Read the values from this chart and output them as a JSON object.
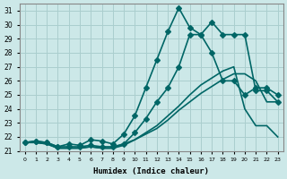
{
  "xlabel": "Humidex (Indice chaleur)",
  "ylabel": "",
  "bg_color": "#cce8e8",
  "grid_color": "#aacece",
  "line_color": "#006666",
  "xlim": [
    -0.5,
    23.5
  ],
  "ylim": [
    21.0,
    31.5
  ],
  "yticks": [
    21,
    22,
    23,
    24,
    25,
    26,
    27,
    28,
    29,
    30,
    31
  ],
  "xticks": [
    0,
    1,
    2,
    3,
    4,
    5,
    6,
    7,
    8,
    9,
    10,
    11,
    12,
    13,
    14,
    15,
    16,
    17,
    18,
    19,
    20,
    21,
    22,
    23
  ],
  "series": [
    {
      "x": [
        0,
        1,
        2,
        3,
        4,
        5,
        6,
        7,
        8,
        9,
        10,
        11,
        12,
        13,
        14,
        15,
        16,
        17,
        18,
        19,
        20,
        21,
        22,
        23
      ],
      "y": [
        21.6,
        21.7,
        21.6,
        21.3,
        21.3,
        21.3,
        21.4,
        21.3,
        21.3,
        21.5,
        22.3,
        23.3,
        24.5,
        25.5,
        27.0,
        29.3,
        29.3,
        30.2,
        29.3,
        29.3,
        29.3,
        25.3,
        25.3,
        24.5
      ],
      "marker": "D",
      "markersize": 3,
      "linewidth": 1.2
    },
    {
      "x": [
        0,
        1,
        2,
        3,
        4,
        5,
        6,
        7,
        8,
        9,
        10,
        11,
        12,
        13,
        14,
        15,
        16,
        17,
        18,
        19,
        20,
        21,
        22,
        23
      ],
      "y": [
        21.6,
        21.7,
        21.6,
        21.3,
        21.5,
        21.4,
        21.8,
        21.7,
        21.5,
        22.2,
        23.5,
        25.5,
        27.5,
        29.5,
        31.2,
        29.8,
        29.3,
        28.0,
        26.0,
        26.0,
        25.0,
        25.5,
        25.5,
        25.0
      ],
      "marker": "D",
      "markersize": 3,
      "linewidth": 1.2
    },
    {
      "x": [
        0,
        1,
        2,
        3,
        4,
        5,
        6,
        7,
        8,
        9,
        10,
        11,
        12,
        13,
        14,
        15,
        16,
        17,
        18,
        19,
        20,
        21,
        22,
        23
      ],
      "y": [
        21.6,
        21.6,
        21.5,
        21.2,
        21.2,
        21.2,
        21.3,
        21.2,
        21.2,
        21.5,
        21.8,
        22.3,
        22.8,
        23.5,
        24.2,
        25.0,
        25.7,
        26.2,
        26.7,
        27.0,
        24.0,
        22.8,
        22.8,
        22.0
      ],
      "marker": null,
      "markersize": 0,
      "linewidth": 1.2
    },
    {
      "x": [
        0,
        1,
        2,
        3,
        4,
        5,
        6,
        7,
        8,
        9,
        10,
        11,
        12,
        13,
        14,
        15,
        16,
        17,
        18,
        19,
        20,
        21,
        22,
        23
      ],
      "y": [
        21.6,
        21.6,
        21.5,
        21.2,
        21.2,
        21.2,
        21.3,
        21.2,
        21.2,
        21.4,
        21.8,
        22.2,
        22.6,
        23.2,
        23.9,
        24.5,
        25.1,
        25.6,
        26.1,
        26.5,
        26.5,
        26.0,
        24.5,
        24.5
      ],
      "marker": null,
      "markersize": 0,
      "linewidth": 1.2
    }
  ]
}
